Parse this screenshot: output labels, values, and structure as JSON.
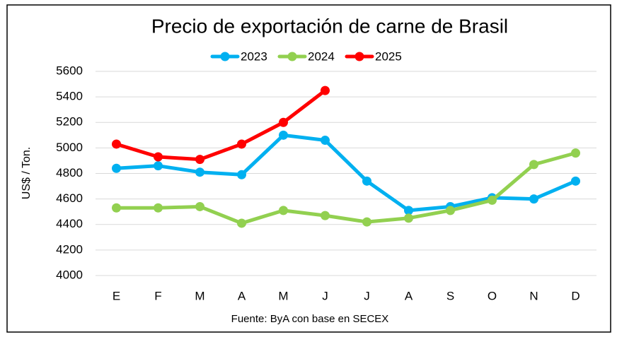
{
  "chart_data": {
    "type": "line",
    "title": "Precio de exportación de carne de Brasil",
    "y_label": "US$ / Ton.",
    "source": "Fuente: ByA con base en SECEX",
    "categories": [
      "E",
      "F",
      "M",
      "A",
      "M",
      "J",
      "J",
      "A",
      "S",
      "O",
      "N",
      "D"
    ],
    "series": [
      {
        "name": "2023",
        "color": "#00b0f0",
        "values": [
          4840,
          4860,
          4810,
          4790,
          5100,
          5060,
          4740,
          4510,
          4540,
          4610,
          4600,
          4740
        ]
      },
      {
        "name": "2024",
        "color": "#92d050",
        "values": [
          4530,
          4530,
          4540,
          4410,
          4510,
          4470,
          4420,
          4450,
          4510,
          4590,
          4870,
          4960
        ]
      },
      {
        "name": "2025",
        "color": "#ff0000",
        "values": [
          5030,
          4930,
          4910,
          5030,
          5200,
          5450,
          null,
          null,
          null,
          null,
          null,
          null
        ]
      }
    ],
    "ylim": [
      4000,
      5600
    ],
    "yticks": [
      4000,
      4200,
      4400,
      4600,
      4800,
      5000,
      5200,
      5400,
      5600
    ],
    "grid": true,
    "legend": "top"
  }
}
